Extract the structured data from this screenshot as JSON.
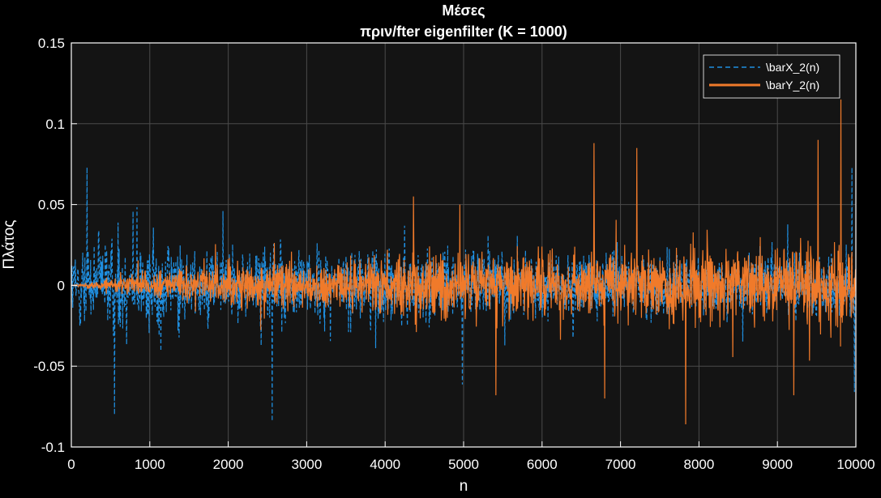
{
  "chart_data": {
    "type": "line",
    "title": "Μέσες",
    "subtitle": "πριν/fter eigenfilter (K = 1000)",
    "xlabel": "n",
    "ylabel": "Πλάτος",
    "xlim": [
      0,
      10000
    ],
    "ylim": [
      -0.1,
      0.15
    ],
    "xticks": [
      0,
      1000,
      2000,
      3000,
      4000,
      5000,
      6000,
      7000,
      8000,
      9000,
      10000
    ],
    "xtick_labels": [
      "0",
      "1000",
      "2000",
      "3000",
      "4000",
      "5000",
      "6000",
      "7000",
      "8000",
      "9000",
      "10000"
    ],
    "yticks": [
      -0.1,
      -0.05,
      0,
      0.05,
      0.1,
      0.15
    ],
    "ytick_labels": [
      "-0.1",
      "-0.05",
      "0",
      "0.05",
      "0.1",
      "0.15"
    ],
    "grid": true,
    "legend_position": "top-right",
    "background": "#000000",
    "axes_background": "#141414",
    "grid_color": "#4a4a4a",
    "series": [
      {
        "name": "\\barX_2(n)",
        "color": "#1f8fe0",
        "style": "dashed",
        "n_points": 10000,
        "envelope": {
          "n": [
            0,
            500,
            1000,
            2000,
            3000,
            4000,
            5000,
            6000,
            7000,
            8000,
            9000,
            10000
          ],
          "amplitude": [
            0.03,
            0.045,
            0.04,
            0.035,
            0.035,
            0.034,
            0.03,
            0.028,
            0.026,
            0.026,
            0.028,
            0.03
          ]
        },
        "peaks": [
          [
            200,
            0.073
          ],
          [
            550,
            -0.08
          ],
          [
            2560,
            -0.084
          ],
          [
            9950,
            0.073
          ],
          [
            9980,
            -0.066
          ]
        ]
      },
      {
        "name": "\\barY_2(n)",
        "color": "#f07a2a",
        "style": "solid",
        "n_points": 10000,
        "envelope": {
          "n": [
            0,
            1000,
            2000,
            3000,
            4000,
            5000,
            6000,
            7000,
            8000,
            9000,
            10000
          ],
          "amplitude": [
            0.0,
            0.012,
            0.018,
            0.022,
            0.026,
            0.03,
            0.03,
            0.032,
            0.033,
            0.034,
            0.035
          ]
        },
        "peaks": [
          [
            4360,
            0.055
          ],
          [
            4950,
            0.05
          ],
          [
            6660,
            0.088
          ],
          [
            7210,
            0.085
          ],
          [
            7830,
            -0.086
          ],
          [
            9520,
            0.09
          ],
          [
            9810,
            0.115
          ],
          [
            6800,
            -0.07
          ],
          [
            9210,
            -0.068
          ],
          [
            5410,
            -0.068
          ]
        ]
      }
    ]
  }
}
